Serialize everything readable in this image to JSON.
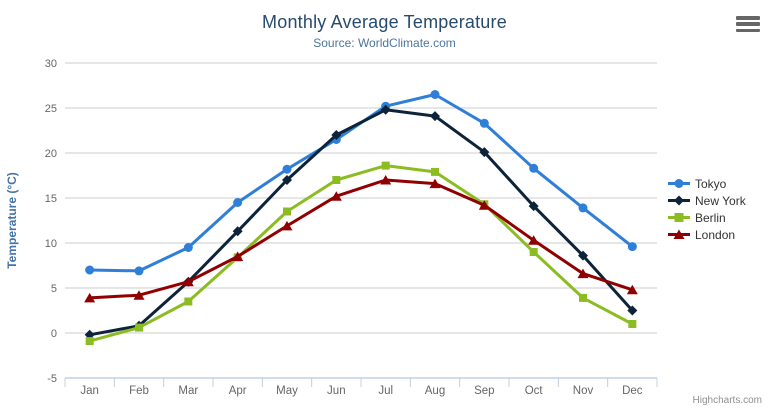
{
  "header": {
    "title": "Monthly Average Temperature",
    "subtitle": "Source: WorldClimate.com"
  },
  "credit_label": "Highcharts.com",
  "icons": {
    "export_menu": "hamburger-icon"
  },
  "colors": {
    "title": "#274b6d",
    "subtitle": "#4d759e",
    "axis_title": "#4572a7",
    "axis_labels": "#666666",
    "gridline": "#cccccc",
    "axis_line": "#c0d0e0",
    "legend_text": "#333333",
    "credit": "#909090"
  },
  "chart_data": {
    "type": "line",
    "title": "Monthly Average Temperature",
    "subtitle": "Source: WorldClimate.com",
    "xlabel": "",
    "ylabel": "Temperature (°C)",
    "ylim": [
      -5,
      30
    ],
    "yticks": [
      30,
      25,
      20,
      15,
      10,
      5,
      0,
      -5
    ],
    "grid": true,
    "legend_position": "right-middle",
    "categories": [
      "Jan",
      "Feb",
      "Mar",
      "Apr",
      "May",
      "Jun",
      "Jul",
      "Aug",
      "Sep",
      "Oct",
      "Nov",
      "Dec"
    ],
    "series": [
      {
        "name": "Tokyo",
        "color": "#2f7ed8",
        "marker": "circle",
        "values": [
          7.0,
          6.9,
          9.5,
          14.5,
          18.2,
          21.5,
          25.2,
          26.5,
          23.3,
          18.3,
          13.9,
          9.6
        ]
      },
      {
        "name": "New York",
        "color": "#0d233a",
        "marker": "diamond",
        "values": [
          -0.2,
          0.8,
          5.7,
          11.3,
          17.0,
          22.0,
          24.8,
          24.1,
          20.1,
          14.1,
          8.6,
          2.5
        ]
      },
      {
        "name": "Berlin",
        "color": "#8bbc21",
        "marker": "square",
        "values": [
          -0.9,
          0.6,
          3.5,
          8.4,
          13.5,
          17.0,
          18.6,
          17.9,
          14.3,
          9.0,
          3.9,
          1.0
        ]
      },
      {
        "name": "London",
        "color": "#910000",
        "marker": "triangle",
        "values": [
          3.9,
          4.2,
          5.7,
          8.5,
          11.9,
          15.2,
          17.0,
          16.6,
          14.2,
          10.3,
          6.6,
          4.8
        ]
      }
    ]
  }
}
